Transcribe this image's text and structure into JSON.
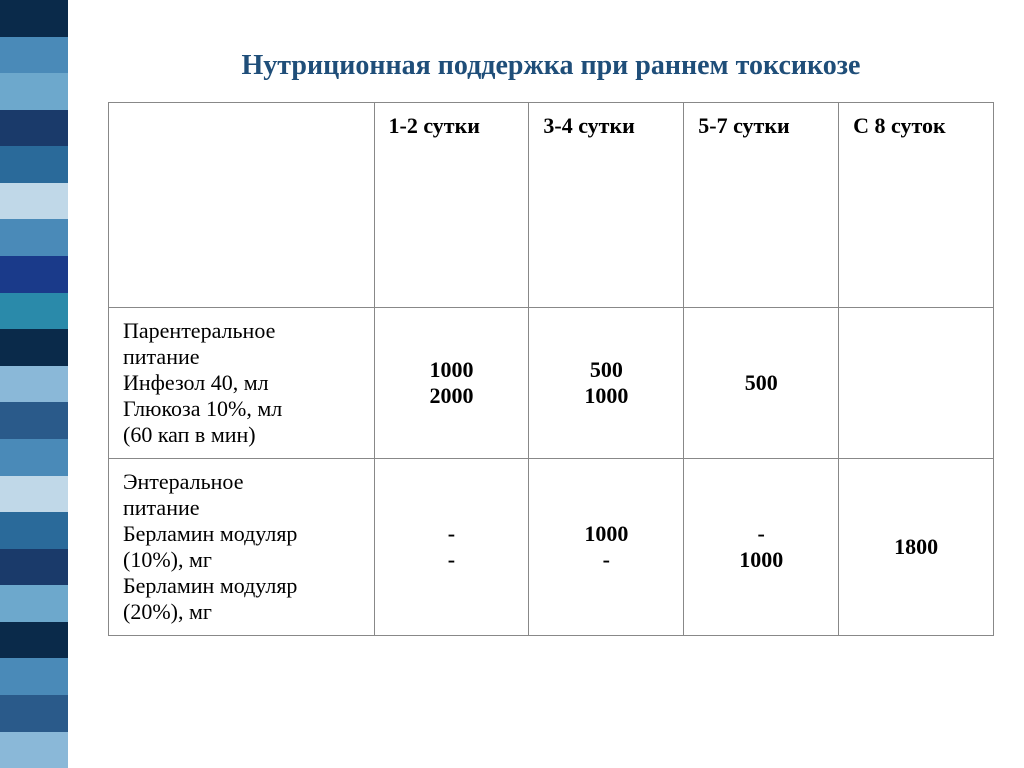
{
  "title": "Нутриционная поддержка при раннем токсикозе",
  "sidebar_colors": [
    "#0a2a4a",
    "#4a8ab8",
    "#6da8cc",
    "#1a3a6a",
    "#2a6a9a",
    "#c0d8e8",
    "#4a8ab8",
    "#1a3a8a",
    "#2a8aaa",
    "#0a2a4a",
    "#8ab8d8",
    "#2a5a8a",
    "#4a8ab8",
    "#c0d8e8",
    "#2a6a9a",
    "#1a3a6a",
    "#6da8cc",
    "#0a2a4a",
    "#4a8ab8",
    "#2a5a8a",
    "#8ab8d8"
  ],
  "columns": {
    "c1": "1-2 сутки",
    "c2": "3-4 сутки",
    "c3": "5-7 сутки",
    "c4": "С 8 суток"
  },
  "row1": {
    "l1": "Парентеральное",
    "l2": "питание",
    "l3": "Инфезол 40, мл",
    "l4": "Глюкоза 10%, мл",
    "l5": "(60 кап в мин)",
    "c1a": "1000",
    "c1b": "2000",
    "c2a": "500",
    "c2b": "1000",
    "c3a": "",
    "c3b": "500",
    "c4a": "",
    "c4b": ""
  },
  "row2": {
    "l1": "Энтеральное",
    "l2": "питание",
    "l3": "Берламин модуляр",
    "l4": "(10%), мг",
    "l5": "Берламин модуляр",
    "l6": "(20%), мг",
    "c1a": "-",
    "c1b": "-",
    "c2a": "1000",
    "c2b": "-",
    "c3a": "-",
    "c3b": "1000",
    "c4a": "",
    "c4b": "1800"
  }
}
